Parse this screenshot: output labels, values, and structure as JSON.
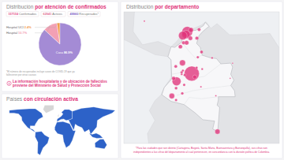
{
  "stats": [
    {
      "value": "117110",
      "label": "Confirmados"
    },
    {
      "value": "62941",
      "label": "Activos"
    },
    {
      "value": "49960",
      "label": "Recuperados*"
    }
  ],
  "chart_data": [
    {
      "type": "pie",
      "title": "Distribución por atención de confirmados",
      "categories": [
        "Hospital UCI",
        "Hospital",
        "Casa"
      ],
      "values": [
        2.4,
        10.7,
        86.9
      ],
      "value_labels": [
        "2.4%",
        "10.7%",
        "86.9%"
      ],
      "colors": [
        "#f39c4a",
        "#f3a0b4",
        "#a48bd5"
      ],
      "data_labels": true
    },
    {
      "type": "bubble",
      "title": "Distribución por departamento",
      "x": [
        -74.08,
        -74.8,
        -75.0,
        -75.51,
        -76.52,
        -75.57,
        -69.94,
        -77.28,
        -74.2,
        -74.3,
        -75.4,
        -75.9,
        -74.9,
        -73.25,
        -72.9,
        -72.5,
        -73.1,
        -73.6,
        -75.2,
        -75.3,
        -75.7,
        -75.5,
        -73.3,
        -76.65,
        -77.0,
        -76.6,
        -76.6,
        -75.6,
        -72.4,
        -70.8,
        -72.6,
        -70.2,
        -67.9,
        -67.5,
        -75.7,
        -81.7
      ],
      "values": [
        4.61,
        10.96,
        10.55,
        10.39,
        3.44,
        6.25,
        -4.2,
        1.21,
        11.24,
        10.0,
        9.3,
        8.7,
        9.3,
        10.0,
        11.3,
        7.9,
        7.1,
        4.1,
        4.4,
        2.9,
        4.8,
        5.07,
        5.5,
        5.7,
        3.88,
        2.4,
        0.6,
        1.6,
        5.3,
        7.0,
        2.6,
        1.25,
        3.9,
        6.2,
        4.5,
        12.58
      ],
      "sizes": [
        30000,
        14000,
        8000,
        8500,
        9000,
        3500,
        2300,
        2800,
        2000,
        1500,
        800,
        1200,
        1500,
        800,
        700,
        600,
        300,
        1200,
        300,
        300,
        350,
        200,
        300,
        600,
        1000,
        500,
        300,
        400,
        100,
        100,
        40,
        30,
        10,
        5,
        100,
        30
      ],
      "xlim": [
        -85,
        -60
      ],
      "ylim": [
        -6,
        14
      ],
      "tick_labels": false,
      "color": "#e0337a"
    },
    {
      "type": "map",
      "title": "Países con circulación activa",
      "color": "#2d62c8"
    }
  ],
  "notes": {
    "recovered": [
      "*El número de recuperados incluye casos de COVID-19 que ya",
      "fallecieron por otras causas"
    ],
    "hospital_info": [
      "La información hospitalaria y de ubicación de fallecidos",
      "proviene del Ministerio de Salud y Protección Social"
    ],
    "districts": [
      "*Para las ciudades que son distrito (Cartagena, Bogotá, Santa Marta, Buenaventura y Barranquilla), sus cifras son",
      "independientes a las cifras del departamento al cual pertenecen, en concordancia con la división política de Colombia."
    ]
  }
}
